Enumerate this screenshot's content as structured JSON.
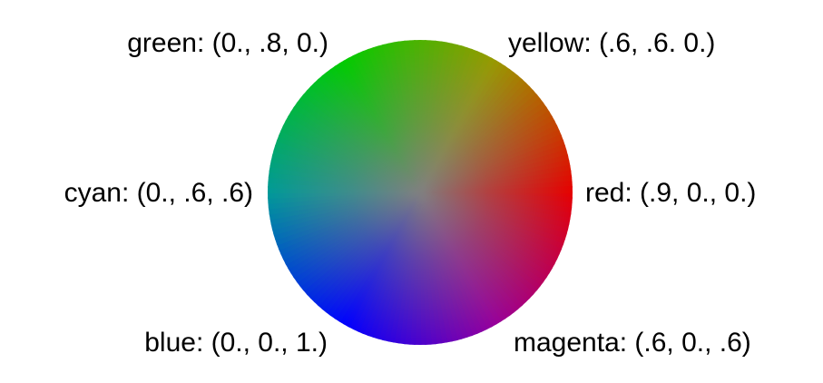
{
  "labels": {
    "green": "green: (0., .8, 0.)",
    "yellow": "yellow: (.6, .6. 0.)",
    "cyan": "cyan: (0., .6, .6)",
    "red": "red: (.9, 0., 0.)",
    "blue": "blue: (0., 0., 1.)",
    "magenta": "magenta: (.6, 0., .6)"
  },
  "wheel": {
    "center_color": "#7f7f7f",
    "colors": {
      "green": "#00cc00",
      "yellow": "#999900",
      "red": "#e60000",
      "magenta": "#990099",
      "blue": "#0000ff",
      "cyan": "#009999"
    }
  }
}
